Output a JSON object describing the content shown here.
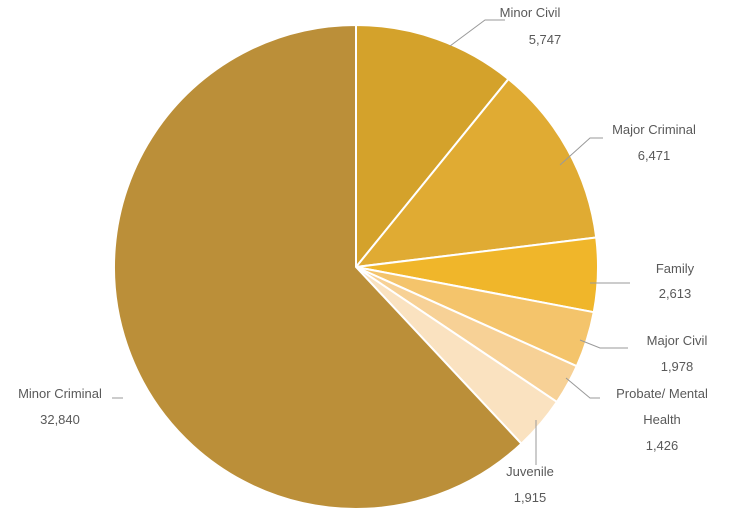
{
  "chart_data": {
    "type": "pie",
    "title": "",
    "legend": "none",
    "slices": [
      {
        "label": "Minor Civil",
        "value": 5747,
        "value_label": "5,747",
        "color": "#d4a22b"
      },
      {
        "label": "Major Criminal",
        "value": 6471,
        "value_label": "6,471",
        "color": "#e0ab33"
      },
      {
        "label": "Family",
        "value": 2613,
        "value_label": "2,613",
        "color": "#f0b62a"
      },
      {
        "label": "Major Civil",
        "value": 1978,
        "value_label": "1,978",
        "color": "#f4c46b"
      },
      {
        "label": "Probate/ Mental Health",
        "value": 1426,
        "value_label": "1,426",
        "color": "#f7d196"
      },
      {
        "label": "Juvenile",
        "value": 1915,
        "value_label": "1,915",
        "color": "#fae2c0"
      },
      {
        "label": "Minor Criminal",
        "value": 32840,
        "value_label": "32,840",
        "color": "#bb8f39"
      }
    ]
  }
}
